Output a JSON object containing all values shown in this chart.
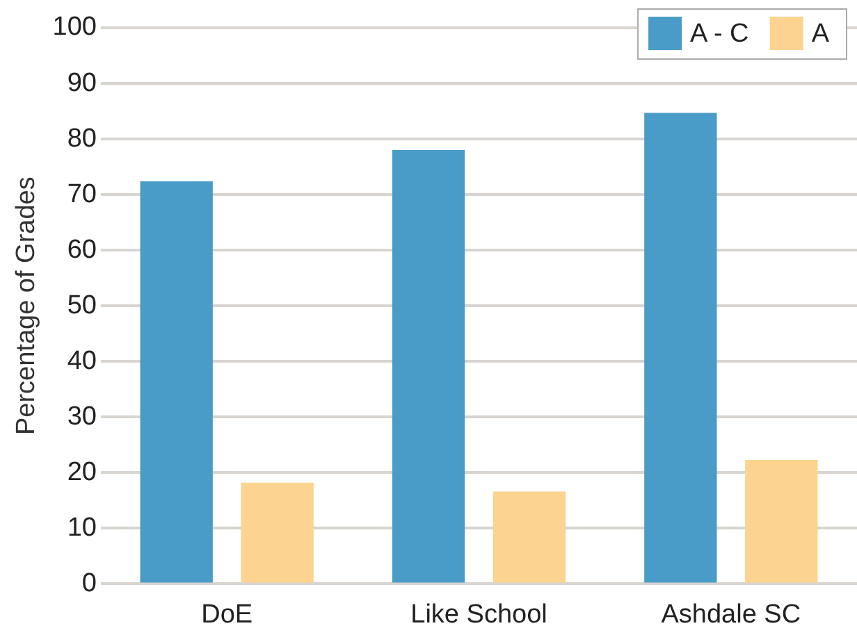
{
  "chart_data": {
    "type": "bar",
    "ylabel": "Percentage of Grades",
    "categories": [
      "DoE",
      "Like School",
      "Ashdale SC"
    ],
    "series": [
      {
        "name": "A - C",
        "color": "#4a9cc8",
        "values": [
          72.4,
          78,
          84.7
        ]
      },
      {
        "name": "A",
        "color": "#fcd38f",
        "values": [
          18.2,
          16.6,
          22.3
        ]
      }
    ],
    "ylim": [
      0,
      100
    ],
    "yticks": [
      0,
      10,
      20,
      30,
      40,
      50,
      60,
      70,
      80,
      90,
      100
    ],
    "grid": "y",
    "legend": "top right"
  }
}
